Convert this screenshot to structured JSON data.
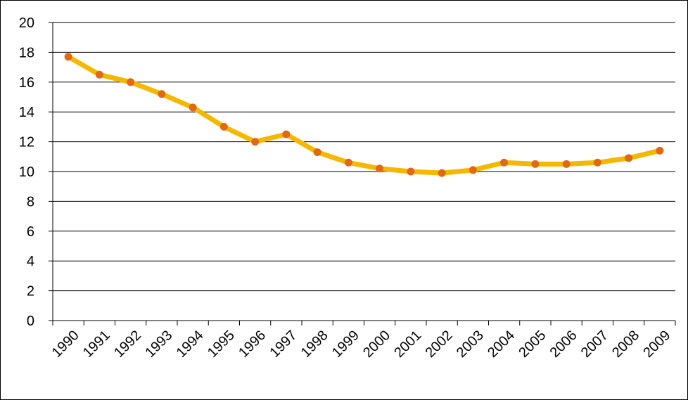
{
  "chart_data": {
    "type": "line",
    "categories": [
      "1990",
      "1991",
      "1992",
      "1993",
      "1994",
      "1995",
      "1996",
      "1997",
      "1998",
      "1999",
      "2000",
      "2001",
      "2002",
      "2003",
      "2004",
      "2005",
      "2006",
      "2007",
      "2008",
      "2009"
    ],
    "values": [
      17.7,
      16.5,
      16.0,
      15.2,
      14.3,
      13.0,
      12.0,
      12.5,
      11.3,
      10.6,
      10.2,
      10.0,
      9.9,
      10.1,
      10.6,
      10.5,
      10.5,
      10.6,
      10.9,
      11.4
    ],
    "color": "#f5b800",
    "marker_color": "#e06a12",
    "ylim": [
      0,
      20
    ],
    "yticks": [
      0,
      2,
      4,
      6,
      8,
      10,
      12,
      14,
      16,
      18,
      20
    ],
    "grid": true
  }
}
